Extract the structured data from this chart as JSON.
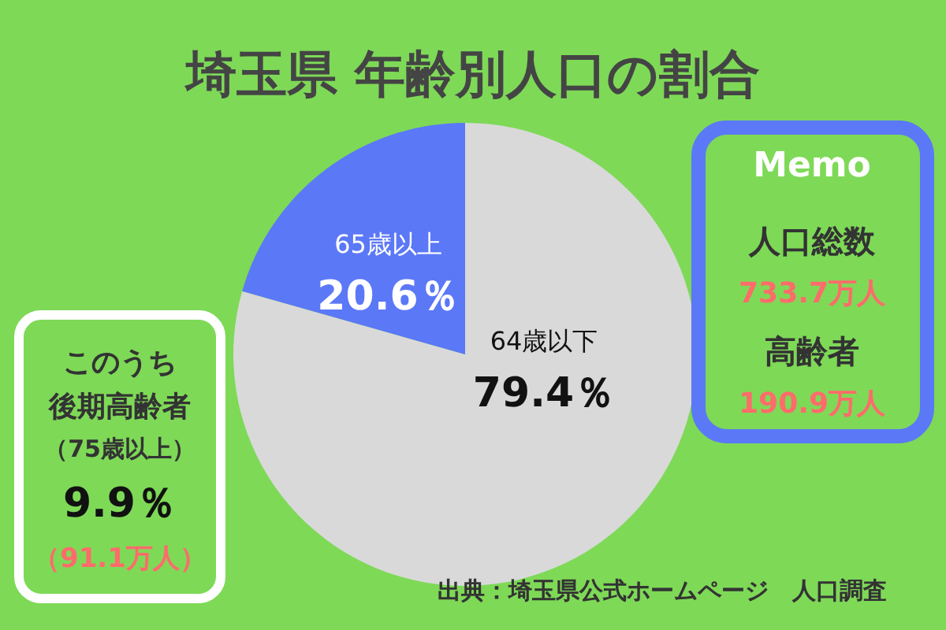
{
  "chart_data": {
    "type": "pie",
    "title": "埼玉県 年齢別人口の割合",
    "categories": [
      "64歳以下",
      "65歳以上"
    ],
    "values": [
      79.4,
      20.6
    ],
    "colors": [
      "#d9d9d9",
      "#5b78f7"
    ],
    "value_labels": [
      "79.4％",
      "20.6％"
    ],
    "annotations": [
      "Memo",
      "人口総数",
      "733.7万人",
      "高齢者",
      "190.9万人",
      "このうち",
      "後期高齢者",
      "（75歳以上）",
      "9.9％",
      "（91.1万人）",
      "出典：埼玉県公式ホームページ　人口調査"
    ]
  }
}
